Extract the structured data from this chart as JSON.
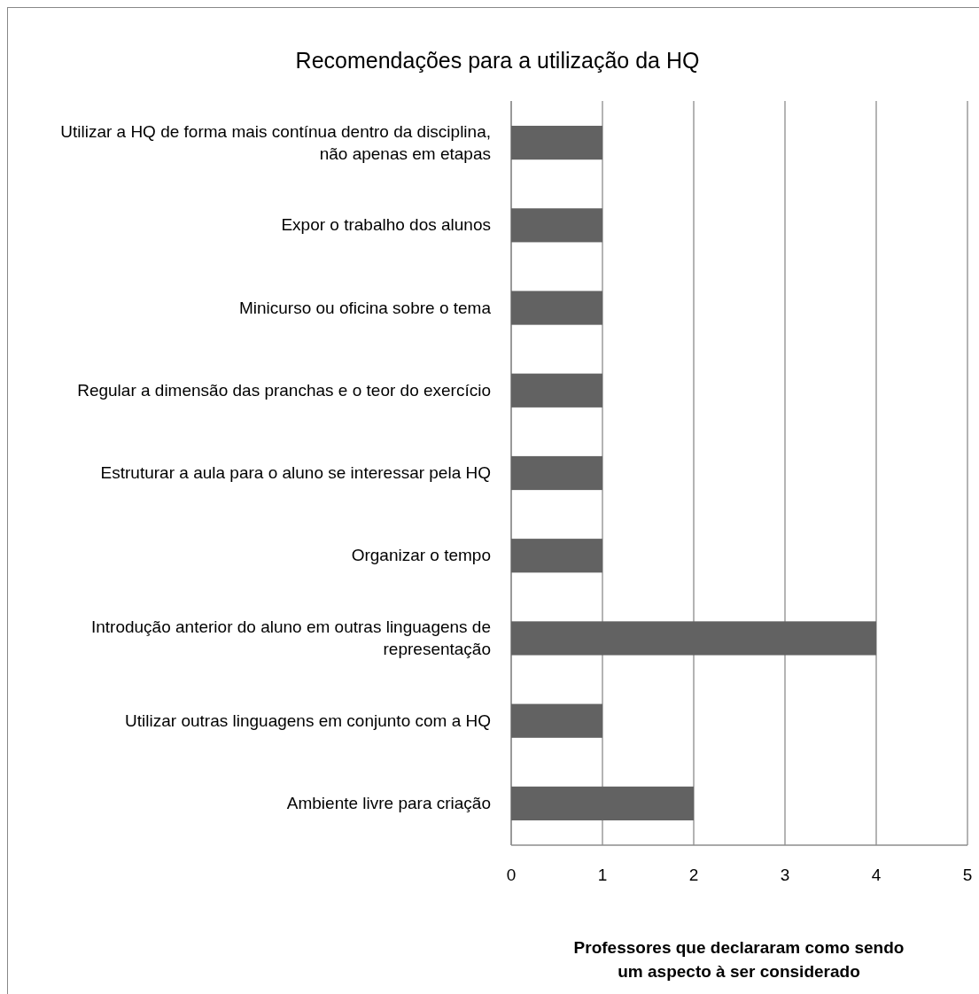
{
  "chart_data": {
    "type": "bar",
    "orientation": "horizontal",
    "title": "Recomendações para a utilização da HQ",
    "xlabel": "Professores que declararam como sendo um aspecto à ser considerado",
    "categories": [
      "Utilizar a HQ de forma mais contínua dentro da disciplina, não apenas em etapas",
      "Expor o trabalho dos alunos",
      "Minicurso ou oficina sobre o tema",
      "Regular a dimensão das pranchas e o teor do exercício",
      "Estruturar a aula para o aluno se interessar pela HQ",
      "Organizar o tempo",
      "Introdução anterior do aluno em outras linguagens de representação",
      "Utilizar outras linguagens em conjunto com a HQ",
      "Ambiente livre para criação"
    ],
    "values": [
      1,
      1,
      1,
      1,
      1,
      1,
      4,
      1,
      2
    ],
    "color": "#626262",
    "xlim": [
      0,
      5
    ],
    "xticks": [
      0,
      1,
      2,
      3,
      4,
      5
    ],
    "grid": "x"
  }
}
